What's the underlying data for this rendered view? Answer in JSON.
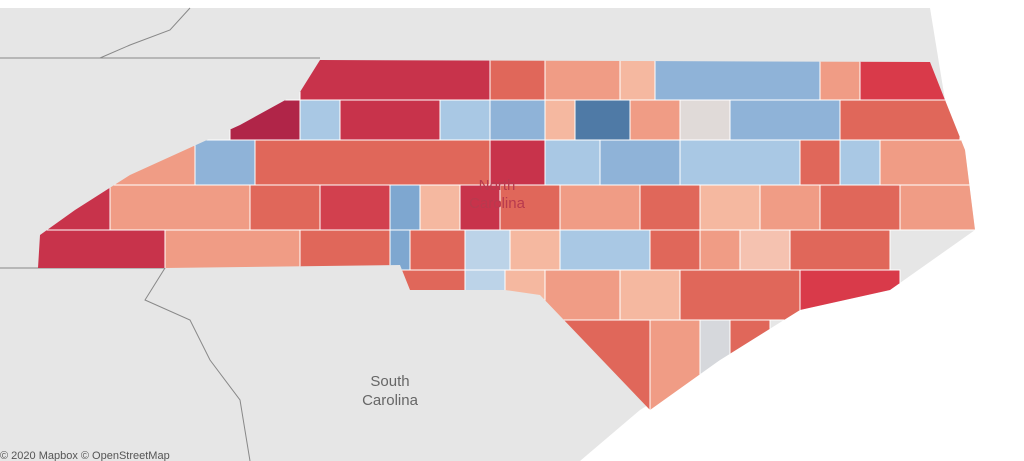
{
  "map": {
    "state_labels": [
      {
        "lines": [
          "North",
          "Carolina"
        ]
      },
      {
        "lines": [
          "South",
          "Carolina"
        ]
      }
    ],
    "attribution": "© 2020 Mapbox © OpenStreetMap"
  }
}
